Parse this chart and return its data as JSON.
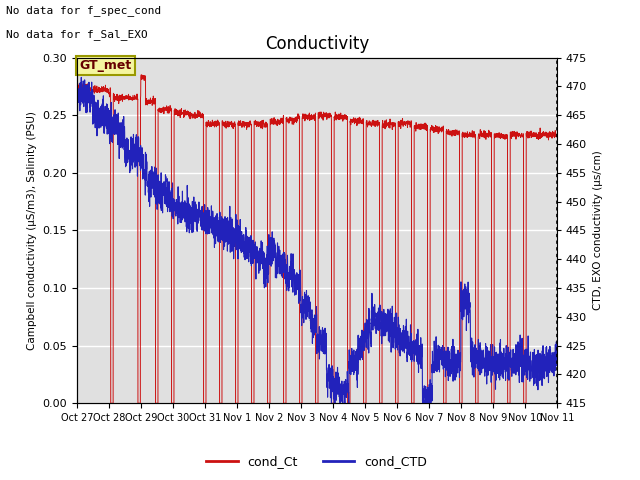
{
  "title": "Conductivity",
  "ylabel_left": "Campbell conductivity (µS/m3), Salinity (PSU)",
  "ylabel_right": "CTD, EXO conductivity (µs/cm)",
  "ylim_left": [
    0.0,
    0.3
  ],
  "ylim_right": [
    415,
    475
  ],
  "annotation1": "No data for f_spec_cond",
  "annotation2": "No data for f_Sal_EXO",
  "gt_label": "GT_met",
  "legend_labels": [
    "cond_Ct",
    "cond_CTD"
  ],
  "line_color_red": "#cc1111",
  "line_color_blue": "#2222bb",
  "bg_color": "#e0e0e0",
  "fig_bg": "#ffffff",
  "yticks_left": [
    0.0,
    0.05,
    0.1,
    0.15,
    0.2,
    0.25,
    0.3
  ],
  "yticks_right": [
    415,
    420,
    425,
    430,
    435,
    440,
    445,
    450,
    455,
    460,
    465,
    470,
    475
  ],
  "xtick_labels": [
    "Oct 27",
    "Oct 28",
    "Oct 29",
    "Oct 30",
    "Oct 31",
    "Nov 1",
    "Nov 2",
    "Nov 3",
    "Nov 4",
    "Nov 5",
    "Nov 6",
    "Nov 7",
    "Nov 8",
    "Nov 9",
    "Nov 10",
    "Nov 11"
  ]
}
